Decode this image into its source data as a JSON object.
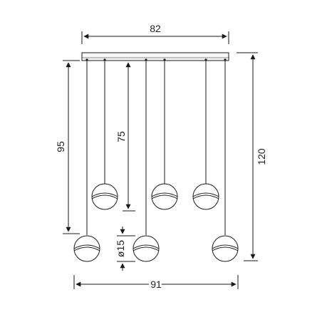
{
  "dimensions": {
    "canopy_width": "82",
    "overall_width": "91",
    "overall_height": "120",
    "drop_long": "95",
    "drop_short": "75",
    "shade_diameter": "ø15"
  },
  "colors": {
    "line": "#1a1a1a",
    "canopy_fill": "#f7f7f7",
    "shade_fill": "#ffffff"
  }
}
